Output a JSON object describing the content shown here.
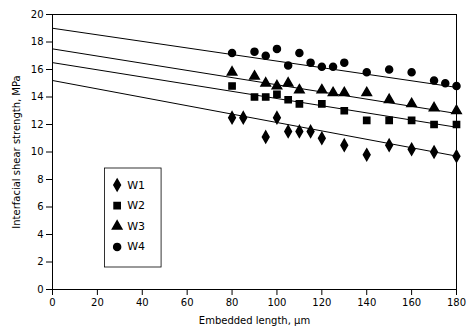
{
  "chart_data": {
    "type": "scatter",
    "xlabel": "Embedded length, μm",
    "ylabel": "Interfacial shear strength, MPa",
    "xlim": [
      0,
      180
    ],
    "ylim": [
      0,
      20
    ],
    "xticks": [
      0,
      20,
      40,
      60,
      80,
      100,
      120,
      140,
      160,
      180
    ],
    "yticks": [
      0,
      2,
      4,
      6,
      8,
      10,
      12,
      14,
      16,
      18,
      20
    ],
    "color": "#000000",
    "legend": "lower left",
    "series": [
      {
        "name": "W1",
        "marker": "diamond",
        "x": [
          80,
          85,
          95,
          100,
          105,
          110,
          115,
          120,
          130,
          140,
          150,
          160,
          170,
          180
        ],
        "values": [
          12.5,
          12.5,
          11.1,
          12.5,
          11.5,
          11.5,
          11.5,
          11.0,
          10.5,
          9.8,
          10.5,
          10.2,
          10.0,
          9.7
        ],
        "trend_x": [
          0,
          180
        ],
        "trend_values": [
          15.2,
          9.7
        ]
      },
      {
        "name": "W2",
        "marker": "square",
        "x": [
          80,
          90,
          95,
          100,
          105,
          110,
          120,
          130,
          140,
          150,
          160,
          170,
          180
        ],
        "values": [
          14.8,
          14.0,
          14.0,
          14.2,
          13.8,
          13.5,
          13.5,
          13.0,
          12.3,
          12.3,
          12.3,
          12.0,
          12.0
        ],
        "trend_x": [
          0,
          180
        ],
        "trend_values": [
          16.5,
          11.8
        ]
      },
      {
        "name": "W3",
        "marker": "triangle",
        "x": [
          80,
          90,
          95,
          100,
          105,
          110,
          120,
          125,
          130,
          140,
          150,
          160,
          170,
          180
        ],
        "values": [
          15.8,
          15.5,
          15.0,
          14.8,
          15.0,
          14.5,
          14.5,
          14.3,
          14.3,
          14.3,
          13.8,
          13.5,
          13.2,
          13.0
        ],
        "trend_x": [
          0,
          180
        ],
        "trend_values": [
          17.5,
          12.8
        ]
      },
      {
        "name": "W4",
        "marker": "circle",
        "x": [
          80,
          90,
          95,
          100,
          105,
          110,
          115,
          120,
          125,
          130,
          140,
          150,
          160,
          170,
          175,
          180
        ],
        "values": [
          17.2,
          17.3,
          17.0,
          17.5,
          16.3,
          17.2,
          16.5,
          16.2,
          16.2,
          16.5,
          15.8,
          16.0,
          15.8,
          15.2,
          15.0,
          14.8
        ],
        "trend_x": [
          0,
          180
        ],
        "trend_values": [
          19.0,
          14.7
        ]
      }
    ]
  }
}
